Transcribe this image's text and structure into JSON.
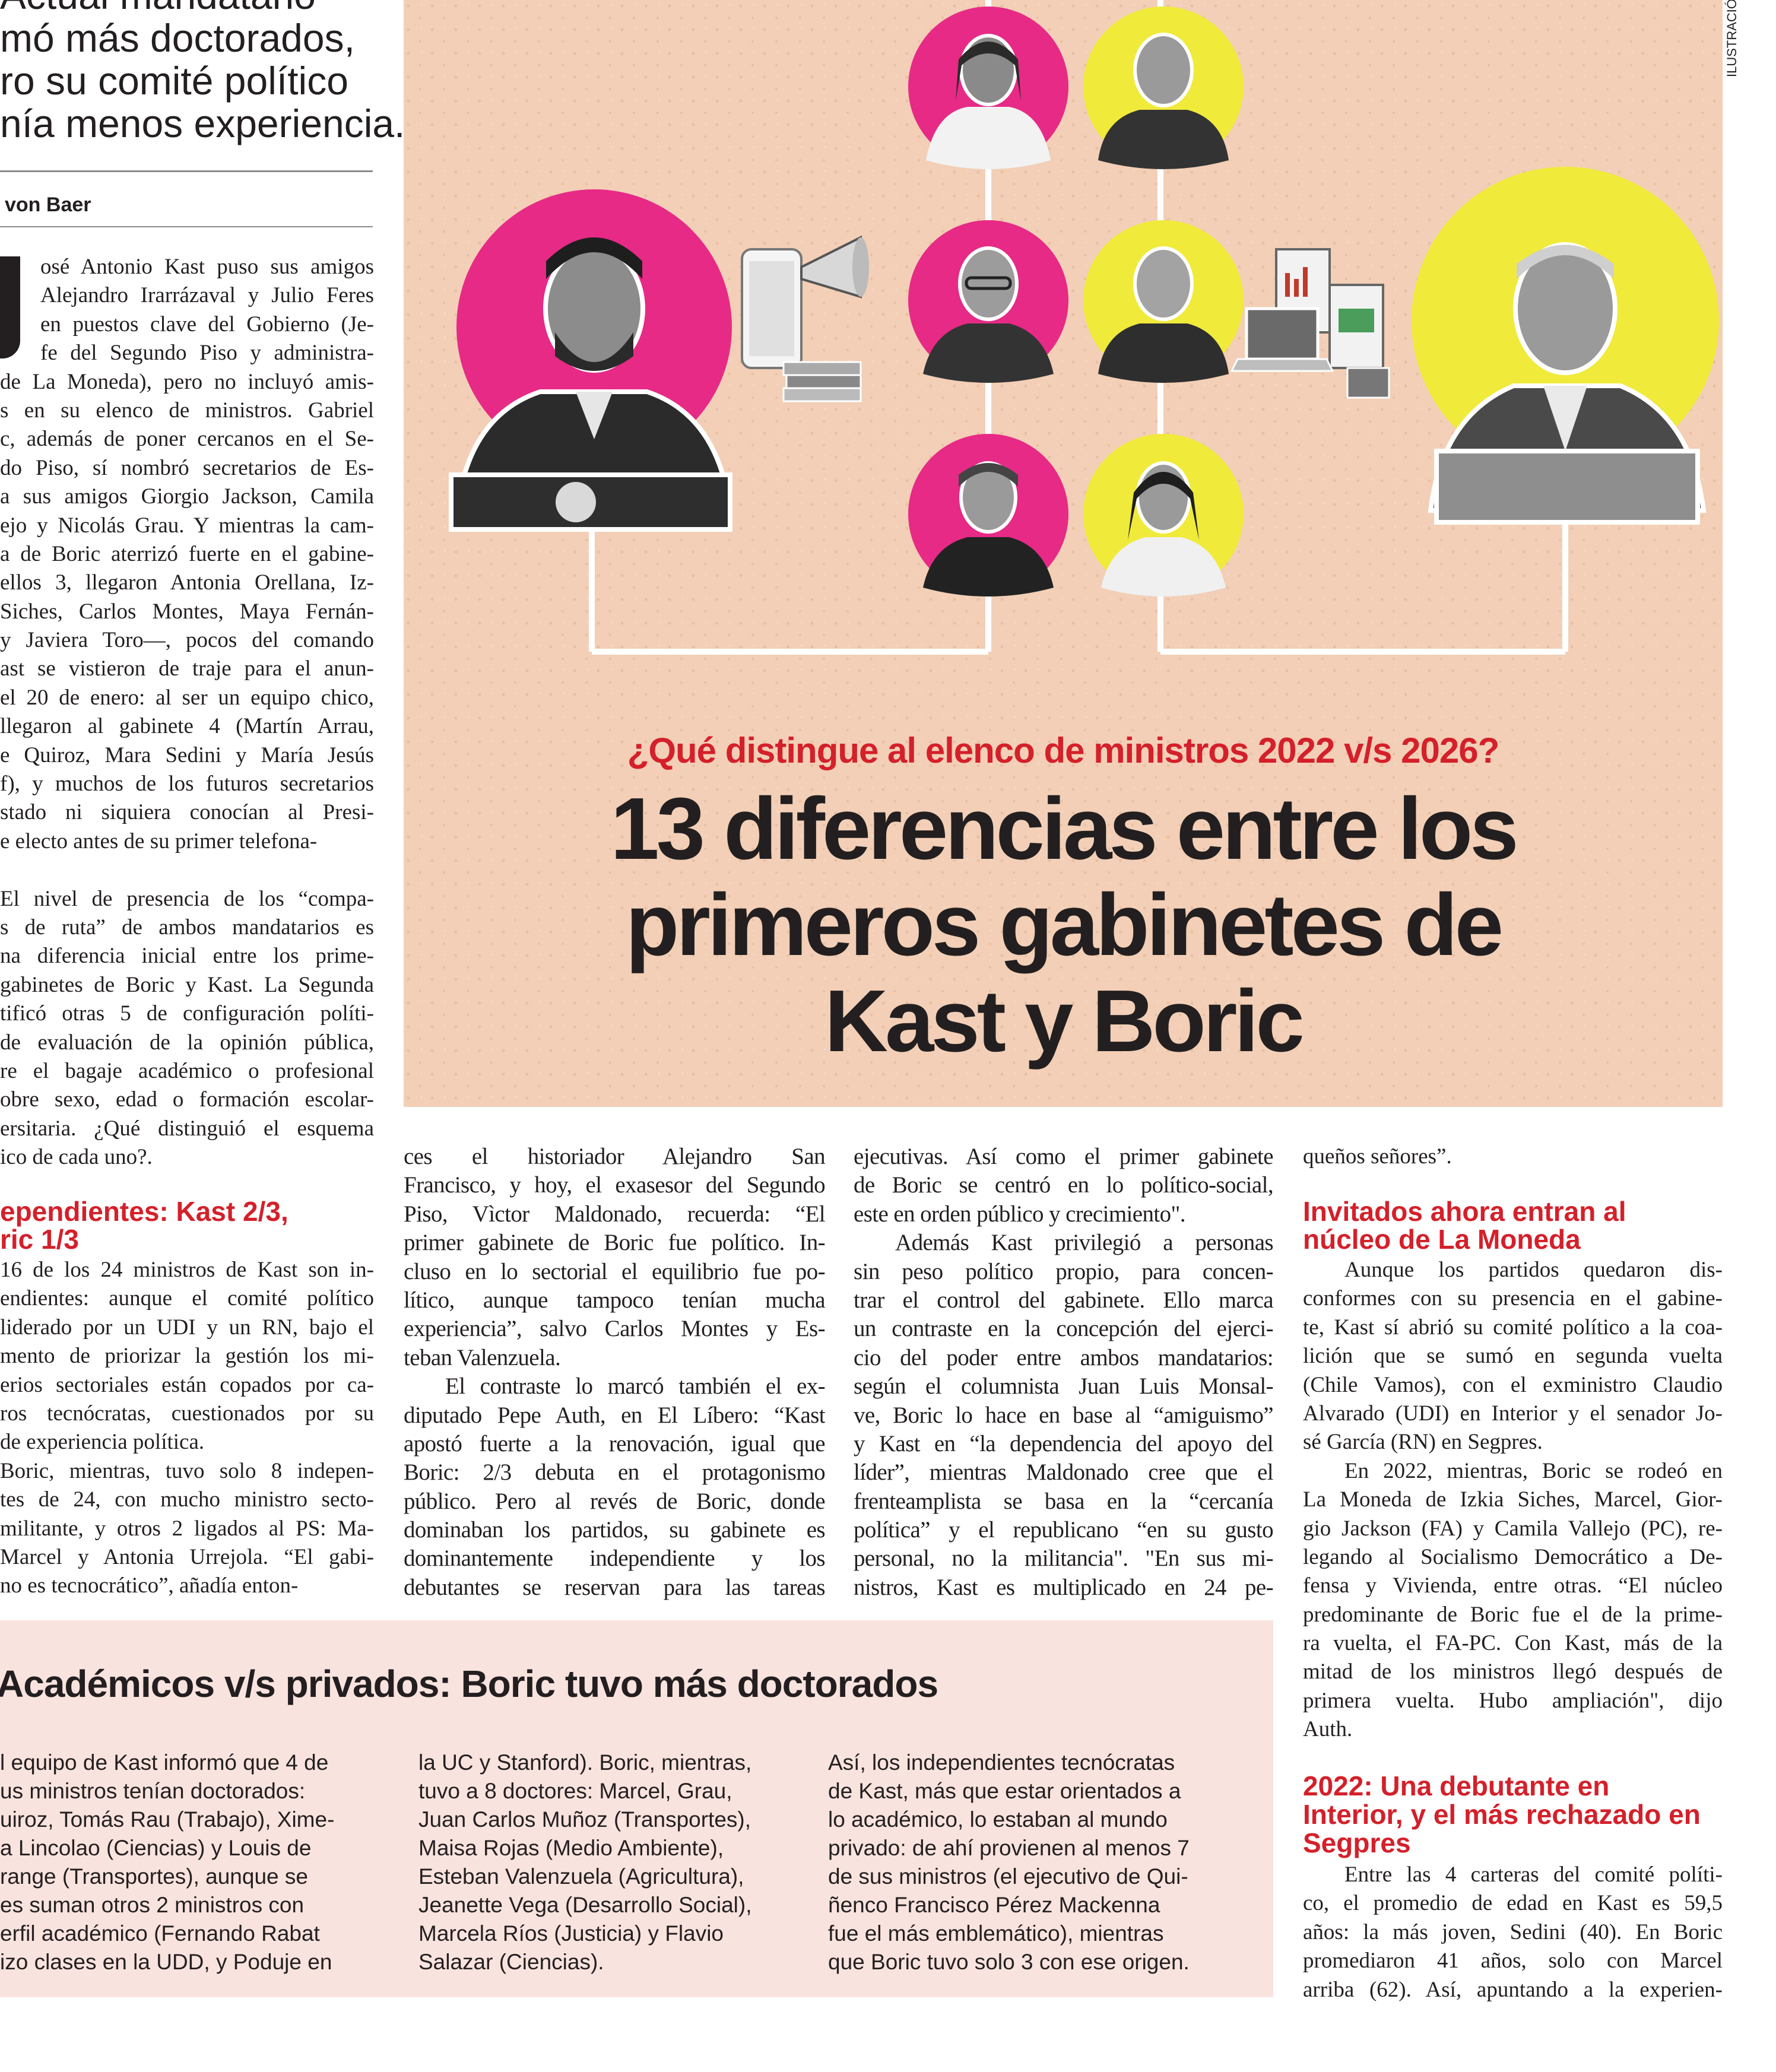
{
  "left_column": {
    "deck_lines": [
      "Actual mandatario",
      "mó más doctorados,",
      "ro su comité político",
      "nía menos experiencia."
    ],
    "byline": "von Baer",
    "drop_cap": "J",
    "intro_lines": [
      "osé Antonio Kast puso sus amigos",
      "Alejandro Irarrázaval y Julio Feres",
      "en puestos clave del Gobierno (Je-",
      "fe del Segundo Piso y administra-",
      "de La Moneda), pero no incluyó amis-",
      "s en su elenco de ministros. Gabriel",
      "c, además de poner cercanos en el Se-",
      "do Piso, sí nombró secretarios de Es-",
      "a sus amigos Giorgio Jackson, Camila",
      "ejo y Nicolás Grau. Y mientras la cam-",
      "a de Boric aterrizó fuerte en el gabine-",
      "ellos 3, llegaron Antonia Orellana, Iz-",
      "Siches, Carlos Montes, Maya Fernán-",
      "y Javiera Toro—, pocos del comando",
      "ast se vistieron de traje para el anun-",
      "el 20 de enero: al ser un equipo chico,",
      "llegaron al gabinete 4 (Martín Arrau,",
      "e Quiroz, Mara Sedini y María Jesús",
      "f), y muchos de los futuros secretarios",
      "stado ni siquiera conocían al Presi-",
      "e electo antes de su primer telefona-",
      "",
      "El nivel de presencia de los “compa-",
      "s de ruta” de ambos mandatarios es",
      "na diferencia inicial entre los prime-",
      "gabinetes de Boric y Kast. La Segunda",
      "tificó otras 5 de configuración políti-",
      " de evaluación de la opinión pública,",
      "re el bagaje académico o profesional",
      "obre sexo, edad o formación escolar-",
      "ersitaria. ¿Qué distinguió el esquema",
      "ico de cada uno?."
    ],
    "section_heading_lines": [
      "ependientes: Kast 2/3,",
      "ric 1/3"
    ],
    "section_lines": [
      "16 de los 24 ministros de Kast son in-",
      "endientes: aunque el comité político",
      "liderado por un UDI y un RN, bajo el",
      "mento de priorizar la gestión los mi-",
      "erios sectoriales están copados por ca-",
      "ros tecnócratas, cuestionados por su",
      " de experiencia política.",
      "Boric, mientras, tuvo solo 8 indepen-",
      "tes de 24, con mucho ministro secto-",
      "militante, y otros 2 ligados al PS: Ma-",
      "Marcel y Antonia Urrejola. “El gabi-",
      " no es tecnocrático”, añadía enton-"
    ]
  },
  "illustration": {
    "credit": "ILUSTRACIÓN",
    "kicker": "¿Qué distingue al elenco de ministros 2022 v/s 2026?",
    "title_lines": [
      "13 diferencias entre los",
      "primeros gabinetes de",
      "Kast y Boric"
    ],
    "colors": {
      "background": "#f2cfb6",
      "boric_side": "#e62a86",
      "kast_side": "#f0ea3a",
      "kicker": "#d4202a",
      "tree_lines": "#ffffff"
    },
    "icons": [
      "person-photo",
      "smartphone-icon",
      "megaphone-icon",
      "books-icon",
      "laptop-icon",
      "chart-clipboard-icon"
    ]
  },
  "column2_lines": [
    "ces el historiador Alejandro San",
    "Francisco, y hoy, el exasesor del Segundo",
    "Piso, Vìctor Maldonado, recuerda: “El",
    "primer gabinete de Boric fue político. In-",
    "cluso en lo sectorial el equilibrio fue po-",
    "lítico, aunque tampoco tenían mucha",
    "experiencia”, salvo Carlos Montes y Es-",
    "teban Valenzuela.",
    "El contraste lo marcó también el ex-",
    "diputado Pepe Auth, en El Líbero: “Kast",
    "apostó fuerte a la renovación, igual que",
    "Boric: 2/3 debuta en el protagonismo",
    "público. Pero al revés de Boric, donde",
    "dominaban los partidos, su gabinete es",
    "dominantemente independiente y los",
    "debutantes se reservan para las tareas"
  ],
  "column3_lines": [
    "ejecutivas. Así como el primer gabinete",
    "de Boric se centró en lo político-social,",
    "este en orden público y crecimiento\".",
    "Además Kast privilegió a personas",
    "sin peso político propio, para concen-",
    "trar el control del gabinete. Ello marca",
    "un contraste en la concepción del ejerci-",
    "cio del poder entre ambos mandatarios:",
    "según el columnista Juan Luis Monsal-",
    "ve, Boric lo hace en base al “amiguismo”",
    "y Kast en “la dependencia del apoyo del",
    "líder”, mientras Maldonado cree que el",
    "frenteamplista se basa en la “cercanía",
    "política” y el republicano “en su gusto",
    "personal, no la militancia\". \"En sus mi-",
    "nistros, Kast es multiplicado en 24 pe-"
  ],
  "column4": {
    "lead_line": "queños señores”.",
    "heading1_lines": [
      "Invitados ahora entran al",
      "núcleo de La Moneda"
    ],
    "body1_lines": [
      "Aunque los partidos quedaron dis-",
      "conformes con su presencia en el gabine-",
      "te, Kast sí abrió su comité político a la coa-",
      "lición que se sumó en segunda vuelta",
      "(Chile Vamos), con el exministro Claudio",
      "Alvarado (UDI) en Interior y el senador Jo-",
      "sé García (RN) en Segpres.",
      "En 2022, mientras, Boric se rodeó en",
      "La Moneda de Izkia Siches, Marcel, Gior-",
      "gio Jackson (FA) y Camila Vallejo (PC), re-",
      "legando al Socialismo Democrático a De-",
      "fensa y Vivienda, entre otras. “El núcleo",
      "predominante de Boric fue el de la prime-",
      "ra vuelta, el FA-PC. Con Kast, más de la",
      "mitad de los ministros llegó después de",
      "primera vuelta. Hubo ampliación\", dijo",
      "Auth."
    ],
    "heading2_lines": [
      "2022: Una debutante en",
      "Interior, y el más rechazado en",
      "Segpres"
    ],
    "body2_lines": [
      "Entre las 4 carteras del comité políti-",
      "co, el promedio de edad en Kast es 59,5",
      "años: la más joven, Sedini (40). En Boric",
      "promediaron 41 años, solo con Marcel",
      "arriba (62). Así, apuntando a la experien-"
    ]
  },
  "sidebar_box": {
    "title": "Académicos v/s privados: Boric tuvo más doctorados",
    "background": "#f9e3de",
    "col1_lines": [
      "l equipo de Kast informó que 4 de",
      "us ministros tenían doctorados:",
      "uiroz, Tomás Rau (Trabajo), Xime-",
      "a Lincolao (Ciencias) y Louis de",
      "range (Transportes), aunque se",
      "es suman otros 2 ministros con",
      "erfil académico (Fernando Rabat",
      "izo clases en la UDD, y Poduje en"
    ],
    "col2_lines": [
      "la UC y Stanford). Boric, mientras,",
      "tuvo a 8 doctores: Marcel, Grau,",
      "Juan Carlos Muñoz (Transportes),",
      "Maisa Rojas (Medio Ambiente),",
      "Esteban Valenzuela (Agricultura),",
      "Jeanette Vega (Desarrollo Social),",
      "Marcela Ríos (Justicia) y Flavio",
      "Salazar (Ciencias)."
    ],
    "col3_lines": [
      "Así, los independientes tecnócratas",
      "de Kast, más que estar orientados a",
      "lo académico, lo estaban al mundo",
      "privado: de ahí provienen al menos 7",
      "de sus ministros (el ejecutivo de Qui-",
      "ñenco Francisco Pérez Mackenna",
      "fue el más emblemático), mientras",
      "que Boric tuvo solo 3 con ese origen."
    ]
  }
}
